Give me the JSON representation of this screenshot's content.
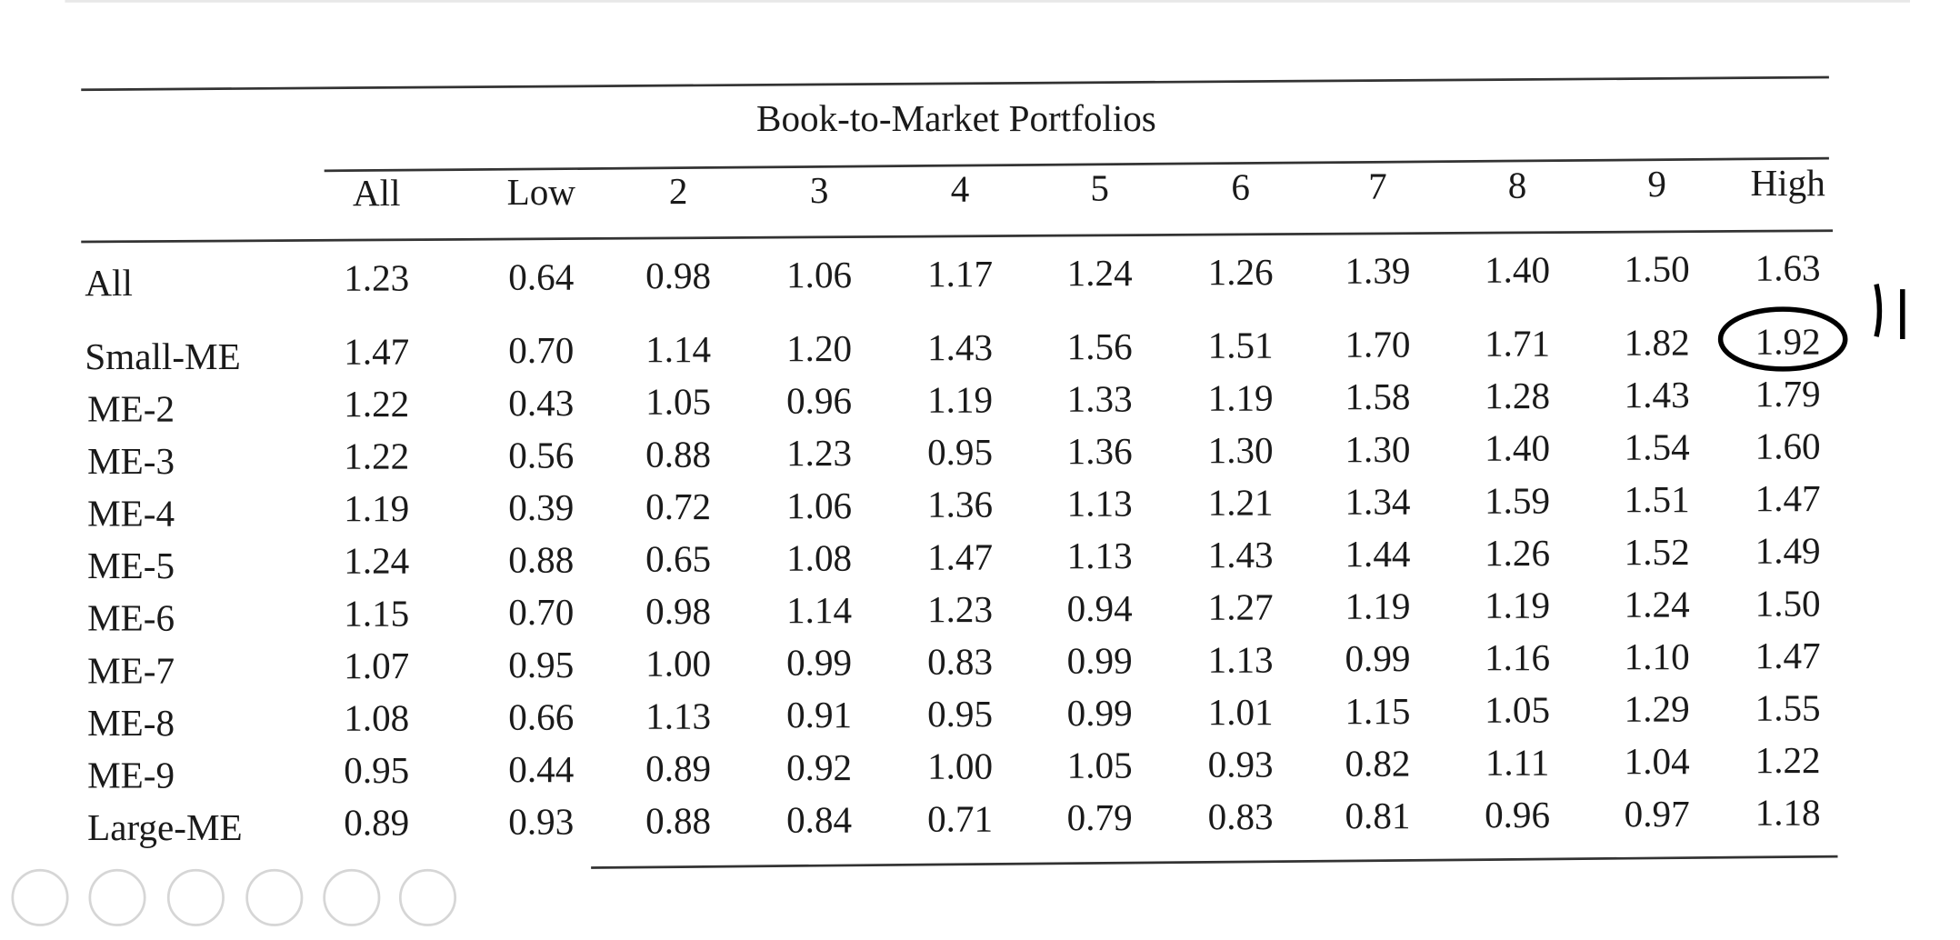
{
  "header": {
    "title": "Book-to-Market Portfolios"
  },
  "table": {
    "columns": [
      "All",
      "Low",
      "2",
      "3",
      "4",
      "5",
      "6",
      "7",
      "8",
      "9",
      "High"
    ],
    "rows": [
      {
        "label": "All",
        "values": [
          "1.23",
          "0.64",
          "0.98",
          "1.06",
          "1.17",
          "1.24",
          "1.26",
          "1.39",
          "1.40",
          "1.50",
          "1.63"
        ]
      },
      {
        "label": "Small-ME",
        "values": [
          "1.47",
          "0.70",
          "1.14",
          "1.20",
          "1.43",
          "1.56",
          "1.51",
          "1.70",
          "1.71",
          "1.82",
          "1.92"
        ]
      },
      {
        "label": "ME-2",
        "values": [
          "1.22",
          "0.43",
          "1.05",
          "0.96",
          "1.19",
          "1.33",
          "1.19",
          "1.58",
          "1.28",
          "1.43",
          "1.79"
        ]
      },
      {
        "label": "ME-3",
        "values": [
          "1.22",
          "0.56",
          "0.88",
          "1.23",
          "0.95",
          "1.36",
          "1.30",
          "1.30",
          "1.40",
          "1.54",
          "1.60"
        ]
      },
      {
        "label": "ME-4",
        "values": [
          "1.19",
          "0.39",
          "0.72",
          "1.06",
          "1.36",
          "1.13",
          "1.21",
          "1.34",
          "1.59",
          "1.51",
          "1.47"
        ]
      },
      {
        "label": "ME-5",
        "values": [
          "1.24",
          "0.88",
          "0.65",
          "1.08",
          "1.47",
          "1.13",
          "1.43",
          "1.44",
          "1.26",
          "1.52",
          "1.49"
        ]
      },
      {
        "label": "ME-6",
        "values": [
          "1.15",
          "0.70",
          "0.98",
          "1.14",
          "1.23",
          "0.94",
          "1.27",
          "1.19",
          "1.19",
          "1.24",
          "1.50"
        ]
      },
      {
        "label": "ME-7",
        "values": [
          "1.07",
          "0.95",
          "1.00",
          "0.99",
          "0.83",
          "0.99",
          "1.13",
          "0.99",
          "1.16",
          "1.10",
          "1.47"
        ]
      },
      {
        "label": "ME-8",
        "values": [
          "1.08",
          "0.66",
          "1.13",
          "0.91",
          "0.95",
          "0.99",
          "1.01",
          "1.15",
          "1.05",
          "1.29",
          "1.55"
        ]
      },
      {
        "label": "ME-9",
        "values": [
          "0.95",
          "0.44",
          "0.89",
          "0.92",
          "1.00",
          "1.05",
          "0.93",
          "0.82",
          "1.11",
          "1.04",
          "1.22"
        ]
      },
      {
        "label": "Large-ME",
        "values": [
          "0.89",
          "0.93",
          "0.88",
          "0.84",
          "0.71",
          "0.79",
          "0.83",
          "0.81",
          "0.96",
          "0.97",
          "1.18"
        ]
      }
    ]
  }
}
